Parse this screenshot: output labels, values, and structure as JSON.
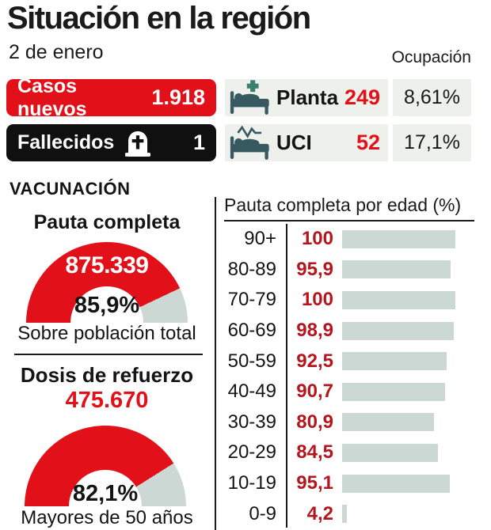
{
  "header": {
    "title": "Situación en la región",
    "date": "2 de enero",
    "occupancy_label": "Ocupación"
  },
  "stats": {
    "new_cases": {
      "label": "Casos nuevos",
      "value": "1.918"
    },
    "deaths": {
      "label": "Fallecidos",
      "value": "1",
      "icon": "tombstone-icon"
    },
    "ward": {
      "label": "Planta",
      "value": "249",
      "occupancy": "8,61%",
      "icon": "hospital-bed-icon"
    },
    "icu": {
      "label": "UCI",
      "value": "52",
      "occupancy": "17,1%",
      "icon": "icu-bed-icon"
    }
  },
  "vaccination": {
    "section_title": "VACUNACIÓN"
  },
  "chart_data": [
    {
      "type": "gauge",
      "title": "Pauta completa",
      "count": "875.339",
      "percent_label": "85,9%",
      "value": 85.9,
      "range": [
        0,
        100
      ],
      "caption": "Sobre población total"
    },
    {
      "type": "gauge",
      "title": "Dosis de refuerzo",
      "count": "475.670",
      "percent_label": "82,1%",
      "value": 82.1,
      "range": [
        0,
        100
      ],
      "caption": "Mayores de 50 años"
    },
    {
      "type": "bar",
      "orientation": "horizontal",
      "title": "Pauta completa por edad (%)",
      "categories": [
        "90+",
        "80-89",
        "70-79",
        "60-69",
        "50-59",
        "40-49",
        "30-39",
        "20-29",
        "10-19",
        "0-9"
      ],
      "values": [
        100,
        95.9,
        100,
        98.9,
        92.5,
        90.7,
        80.9,
        84.5,
        95.1,
        4.2
      ],
      "display_values": [
        "100",
        "95,9",
        "100",
        "98,9",
        "92,5",
        "90,7",
        "80,9",
        "84,5",
        "95,1",
        "4,2"
      ],
      "xlim": [
        0,
        100
      ],
      "legend": "none",
      "grid": false
    }
  ],
  "colors": {
    "accent_red": "#e11019",
    "value_red": "#b5161d",
    "bar_fill": "#ccd8d4",
    "gauge_gray": "#ccd8d4",
    "box_bg": "#eef0ec",
    "icon_teal": "#375960",
    "cross_teal": "#3b7f70",
    "ink": "#141414"
  }
}
